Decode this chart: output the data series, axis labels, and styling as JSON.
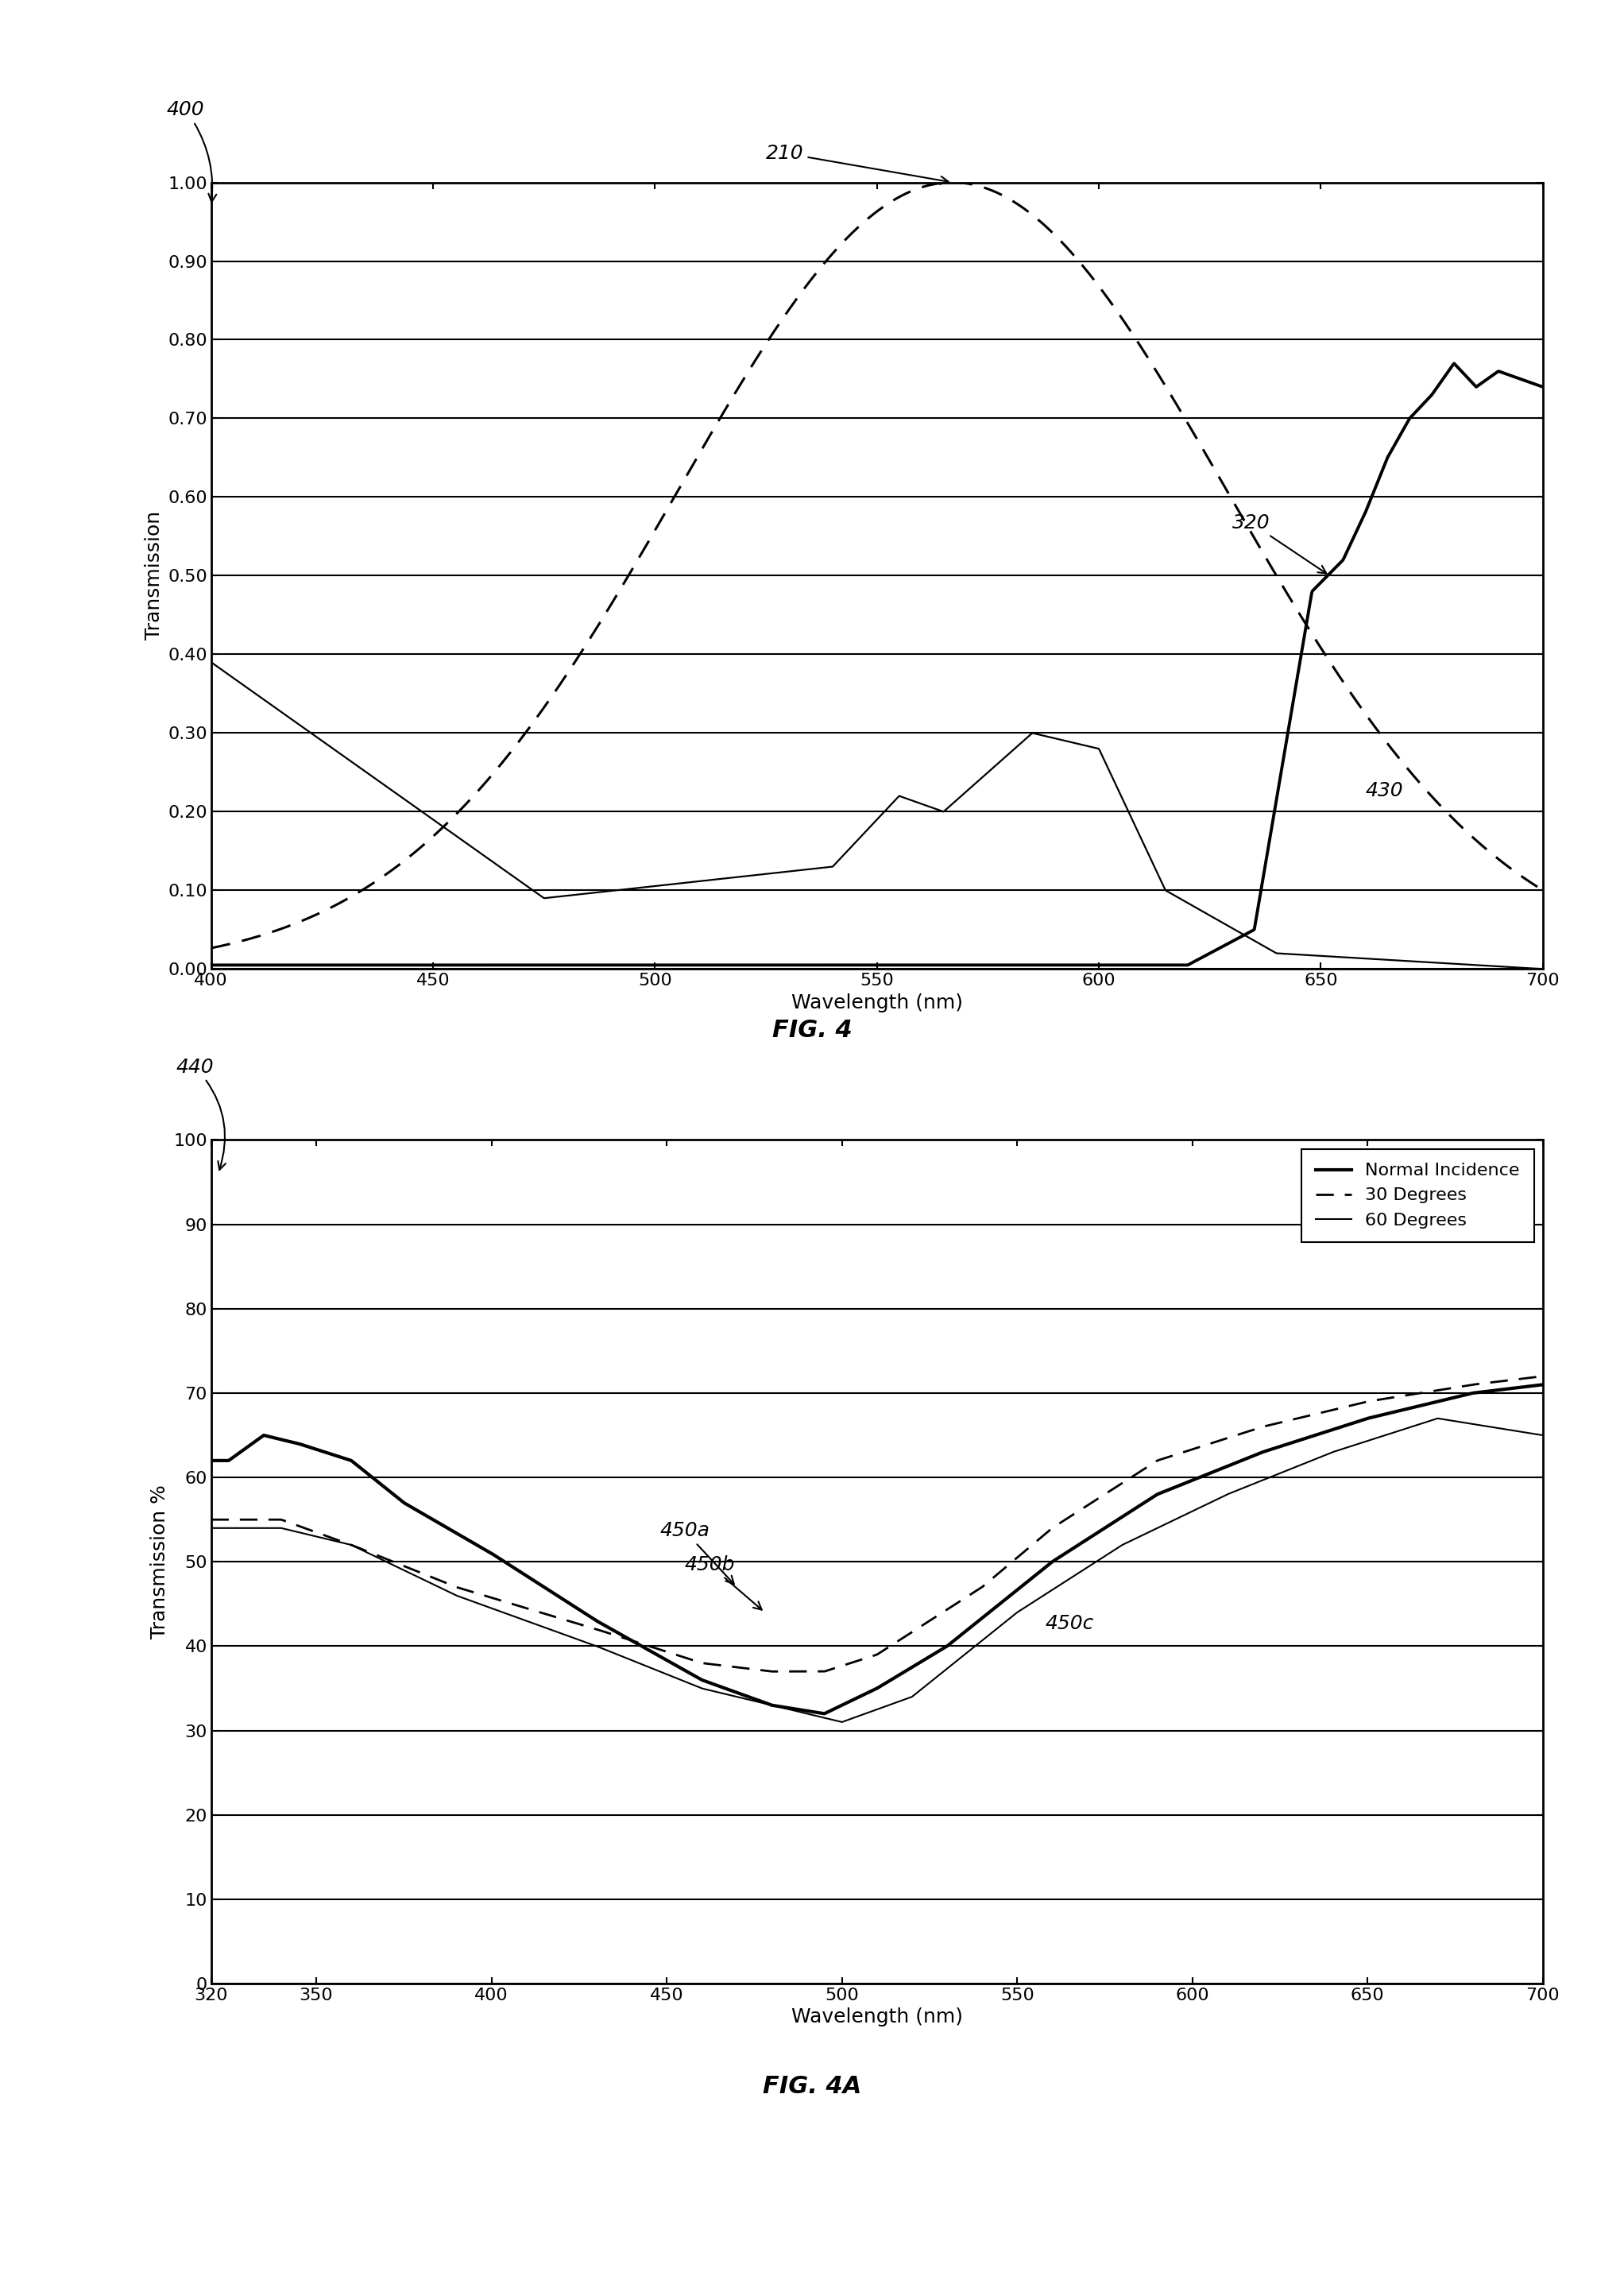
{
  "fig4": {
    "title": "FIG. 4",
    "label": "400",
    "xlabel": "Wavelength (nm)",
    "ylabel": "Transmission",
    "xlim": [
      400,
      700
    ],
    "ylim": [
      0.0,
      1.0
    ],
    "yticks": [
      0.0,
      0.1,
      0.2,
      0.3,
      0.4,
      0.5,
      0.6,
      0.7,
      0.8,
      0.9,
      1.0
    ],
    "ytick_labels": [
      "0.00",
      "0.10",
      "0.20",
      "0.30",
      "0.40",
      "0.50",
      "0.60",
      "0.70",
      "0.80",
      "0.90",
      "1.00"
    ],
    "xticks": [
      400,
      450,
      500,
      550,
      600,
      650,
      700
    ],
    "curve210_label": "210",
    "curve320_label": "320",
    "curve430_label": "430"
  },
  "fig4a": {
    "title": "FIG. 4A",
    "label": "440",
    "xlabel": "Wavelength (nm)",
    "ylabel": "Transmission %",
    "xlim": [
      320,
      700
    ],
    "ylim": [
      0,
      100
    ],
    "yticks": [
      0,
      10,
      20,
      30,
      40,
      50,
      60,
      70,
      80,
      90,
      100
    ],
    "xticks": [
      320,
      350,
      400,
      450,
      500,
      550,
      600,
      650,
      700
    ],
    "legend_entries": [
      "Normal Incidence",
      "30 Degrees",
      "60 Degrees"
    ],
    "curve450a_label": "450a",
    "curve450b_label": "450b",
    "curve450c_label": "450c"
  }
}
